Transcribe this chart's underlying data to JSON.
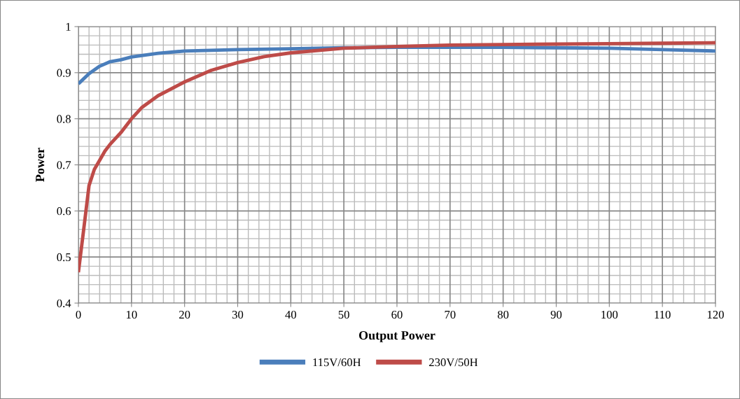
{
  "chart_data": {
    "type": "line",
    "xlabel": "Output Power",
    "ylabel": "Power",
    "xlim": [
      0,
      120
    ],
    "xticks": [
      0,
      10,
      20,
      30,
      40,
      50,
      60,
      70,
      80,
      90,
      100,
      110,
      120
    ],
    "ylim": [
      0.4,
      1
    ],
    "yticks": [
      0.4,
      0.5,
      0.6,
      0.7,
      0.8,
      0.9,
      1
    ],
    "grid": true,
    "legend": "bottom",
    "marker": "none",
    "line_style": "solid",
    "series": [
      {
        "name": "115V/60H",
        "color": "#4a7ebb",
        "x": [
          0,
          2,
          4,
          6,
          8,
          10,
          15,
          20,
          30,
          40,
          50,
          60,
          70,
          80,
          90,
          100,
          110,
          120
        ],
        "values": [
          0.876,
          0.898,
          0.914,
          0.924,
          0.928,
          0.934,
          0.942,
          0.947,
          0.95,
          0.952,
          0.954,
          0.955,
          0.955,
          0.955,
          0.954,
          0.953,
          0.95,
          0.947
        ]
      },
      {
        "name": "230V/50H",
        "color": "#be4b48",
        "x": [
          0,
          1,
          2,
          3,
          4,
          5,
          6,
          8,
          10,
          12,
          15,
          20,
          25,
          30,
          35,
          40,
          50,
          60,
          70,
          80,
          90,
          100,
          110,
          120
        ],
        "values": [
          0.467,
          0.56,
          0.655,
          0.69,
          0.71,
          0.73,
          0.745,
          0.77,
          0.8,
          0.825,
          0.85,
          0.88,
          0.905,
          0.922,
          0.935,
          0.943,
          0.953,
          0.957,
          0.96,
          0.961,
          0.962,
          0.963,
          0.964,
          0.965
        ]
      }
    ]
  }
}
